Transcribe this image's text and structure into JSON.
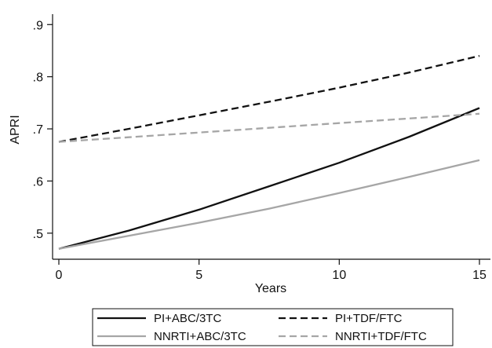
{
  "chart_data": {
    "type": "line",
    "title": "",
    "xlabel": "Years",
    "ylabel": "APRI",
    "xlim": [
      0,
      15
    ],
    "ylim": [
      0.45,
      0.92
    ],
    "xticks": [
      0,
      5,
      10,
      15
    ],
    "xtick_labels": [
      "0",
      "5",
      "10",
      "15"
    ],
    "yticks": [
      0.5,
      0.6,
      0.7,
      0.8,
      0.9
    ],
    "ytick_labels": [
      ".5",
      ".6",
      ".7",
      ".8",
      ".9"
    ],
    "grid": false,
    "legend_placement": "bottom",
    "series": [
      {
        "name": "PI+ABC/3TC",
        "color": "#111111",
        "dash": "solid",
        "x": [
          0,
          2.5,
          5,
          7.5,
          10,
          12.5,
          15
        ],
        "y": [
          0.47,
          0.505,
          0.545,
          0.59,
          0.635,
          0.685,
          0.74
        ]
      },
      {
        "name": "PI+TDF/FTC",
        "color": "#111111",
        "dash": "dashed",
        "x": [
          0,
          2.5,
          5,
          7.5,
          10,
          12.5,
          15
        ],
        "y": [
          0.675,
          0.7,
          0.726,
          0.752,
          0.779,
          0.808,
          0.84
        ]
      },
      {
        "name": "NNRTI+ABC/3TC",
        "color": "#a6a6a6",
        "dash": "solid",
        "x": [
          0,
          2.5,
          5,
          7.5,
          10,
          12.5,
          15
        ],
        "y": [
          0.47,
          0.495,
          0.52,
          0.547,
          0.577,
          0.608,
          0.64
        ]
      },
      {
        "name": "NNRTI+TDF/FTC",
        "color": "#a6a6a6",
        "dash": "dashed",
        "x": [
          0,
          2.5,
          5,
          7.5,
          10,
          12.5,
          15
        ],
        "y": [
          0.675,
          0.684,
          0.693,
          0.702,
          0.711,
          0.72,
          0.729
        ]
      }
    ]
  }
}
